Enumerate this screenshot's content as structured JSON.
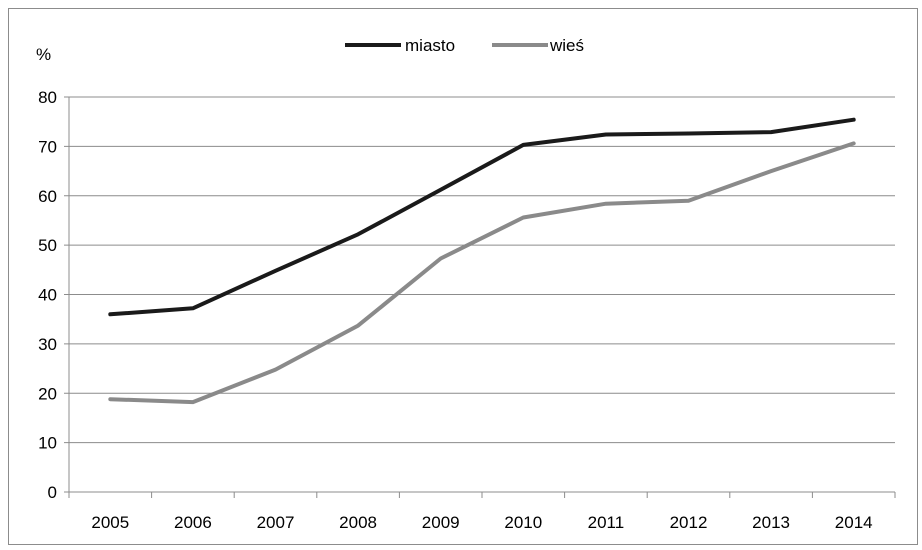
{
  "chart_data": {
    "type": "line",
    "ylabel": "%",
    "ylim": [
      0,
      80
    ],
    "ytick_step": 10,
    "grid": true,
    "legend_position": "top-center",
    "categories": [
      "2005",
      "2006",
      "2007",
      "2008",
      "2009",
      "2010",
      "2011",
      "2012",
      "2013",
      "2014"
    ],
    "series": [
      {
        "name": "miasto",
        "color": "#1a1a1a",
        "values": [
          36.0,
          37.2,
          44.8,
          52.2,
          61.2,
          70.3,
          72.4,
          72.6,
          72.9,
          75.4
        ]
      },
      {
        "name": "wieś",
        "color": "#8a8a8a",
        "values": [
          18.8,
          18.2,
          24.8,
          33.7,
          47.3,
          55.6,
          58.4,
          59.0,
          65.0,
          70.6
        ]
      }
    ]
  }
}
